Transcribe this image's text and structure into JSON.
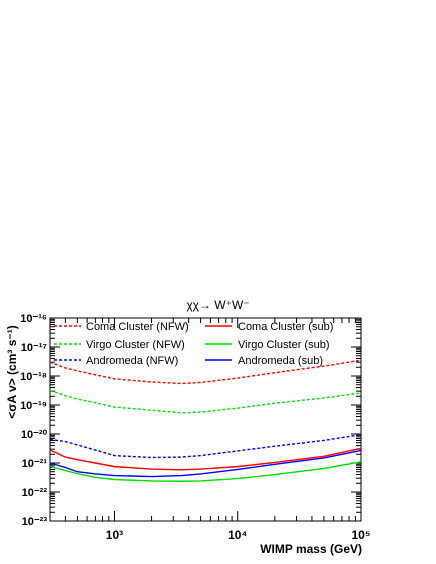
{
  "chart_data": {
    "type": "line",
    "title": "χχ→ W⁺W⁻",
    "xlabel": "WIMP mass (GeV)",
    "ylabel": "<σA v> (cm³ s⁻¹)",
    "xscale": "log",
    "yscale": "log",
    "xlim": [
      300,
      100000
    ],
    "ylim": [
      1e-23,
      1e-16
    ],
    "x_tick_labels": [
      "10³",
      "10⁴",
      "10⁵"
    ],
    "y_tick_labels": [
      "10⁻²³",
      "10⁻²²",
      "10⁻²¹",
      "10⁻²⁰",
      "10⁻¹⁹",
      "10⁻¹⁸",
      "10⁻¹⁷",
      "10⁻¹⁶"
    ],
    "grid": false,
    "legend_position": "top",
    "series": [
      {
        "name": "Coma Cluster (NFW)",
        "color": "#ff0000",
        "dash": "dotted",
        "x": [
          300,
          400,
          500,
          700,
          1000,
          2000,
          3500,
          5000,
          10000,
          20000,
          50000,
          100000
        ],
        "y": [
          3e-18,
          1.9e-18,
          1.5e-18,
          1.1e-18,
          8e-19,
          6.2e-19,
          5.5e-19,
          6e-19,
          8.5e-19,
          1.3e-18,
          2.2e-18,
          3.5e-18
        ]
      },
      {
        "name": "Virgo Cluster (NFW)",
        "color": "#00dd00",
        "dash": "dotted",
        "x": [
          300,
          400,
          500,
          700,
          1000,
          2000,
          3500,
          5000,
          10000,
          20000,
          50000,
          100000
        ],
        "y": [
          3.2e-19,
          2.1e-19,
          1.6e-19,
          1.2e-19,
          8.5e-20,
          6.6e-20,
          5.4e-20,
          5.7e-20,
          7.8e-20,
          1.15e-19,
          1.75e-19,
          2.6e-19
        ]
      },
      {
        "name": "Andromeda (NFW)",
        "color": "#0000ff",
        "dash": "dotted",
        "x": [
          300,
          400,
          500,
          700,
          1000,
          2000,
          3500,
          5000,
          10000,
          20000,
          50000,
          100000
        ],
        "y": [
          6.5e-21,
          5.5e-21,
          4.2e-21,
          2.8e-21,
          1.8e-21,
          1.55e-21,
          1.6e-21,
          1.8e-21,
          2.6e-21,
          3.8e-21,
          6e-21,
          9.5e-21
        ]
      },
      {
        "name": "Coma Cluster (sub)",
        "color": "#ff0000",
        "dash": "solid",
        "x": [
          300,
          400,
          500,
          700,
          1000,
          2000,
          3500,
          5000,
          10000,
          20000,
          50000,
          100000
        ],
        "y": [
          2.8e-21,
          1.6e-21,
          1.3e-21,
          1e-21,
          7.5e-22,
          6.2e-22,
          5.8e-22,
          6.2e-22,
          7.5e-22,
          1.05e-21,
          1.7e-21,
          3.2e-21
        ]
      },
      {
        "name": "Virgo Cluster (sub)",
        "color": "#00dd00",
        "dash": "solid",
        "x": [
          300,
          400,
          500,
          700,
          1000,
          2000,
          3500,
          5000,
          10000,
          20000,
          50000,
          100000
        ],
        "y": [
          7.5e-22,
          5.5e-22,
          4.3e-22,
          3.2e-22,
          2.7e-22,
          2.4e-22,
          2.35e-22,
          2.4e-22,
          2.9e-22,
          4e-22,
          6.5e-22,
          1.1e-21
        ]
      },
      {
        "name": "Andromeda (sub)",
        "color": "#0000ff",
        "dash": "solid",
        "x": [
          300,
          400,
          500,
          700,
          1000,
          2000,
          3500,
          5000,
          10000,
          20000,
          50000,
          100000
        ],
        "y": [
          1e-21,
          7e-22,
          5e-22,
          4.2e-22,
          3.7e-22,
          3.4e-22,
          3.7e-22,
          4.2e-22,
          6e-22,
          9e-22,
          1.5e-21,
          2.7e-21
        ]
      }
    ]
  }
}
